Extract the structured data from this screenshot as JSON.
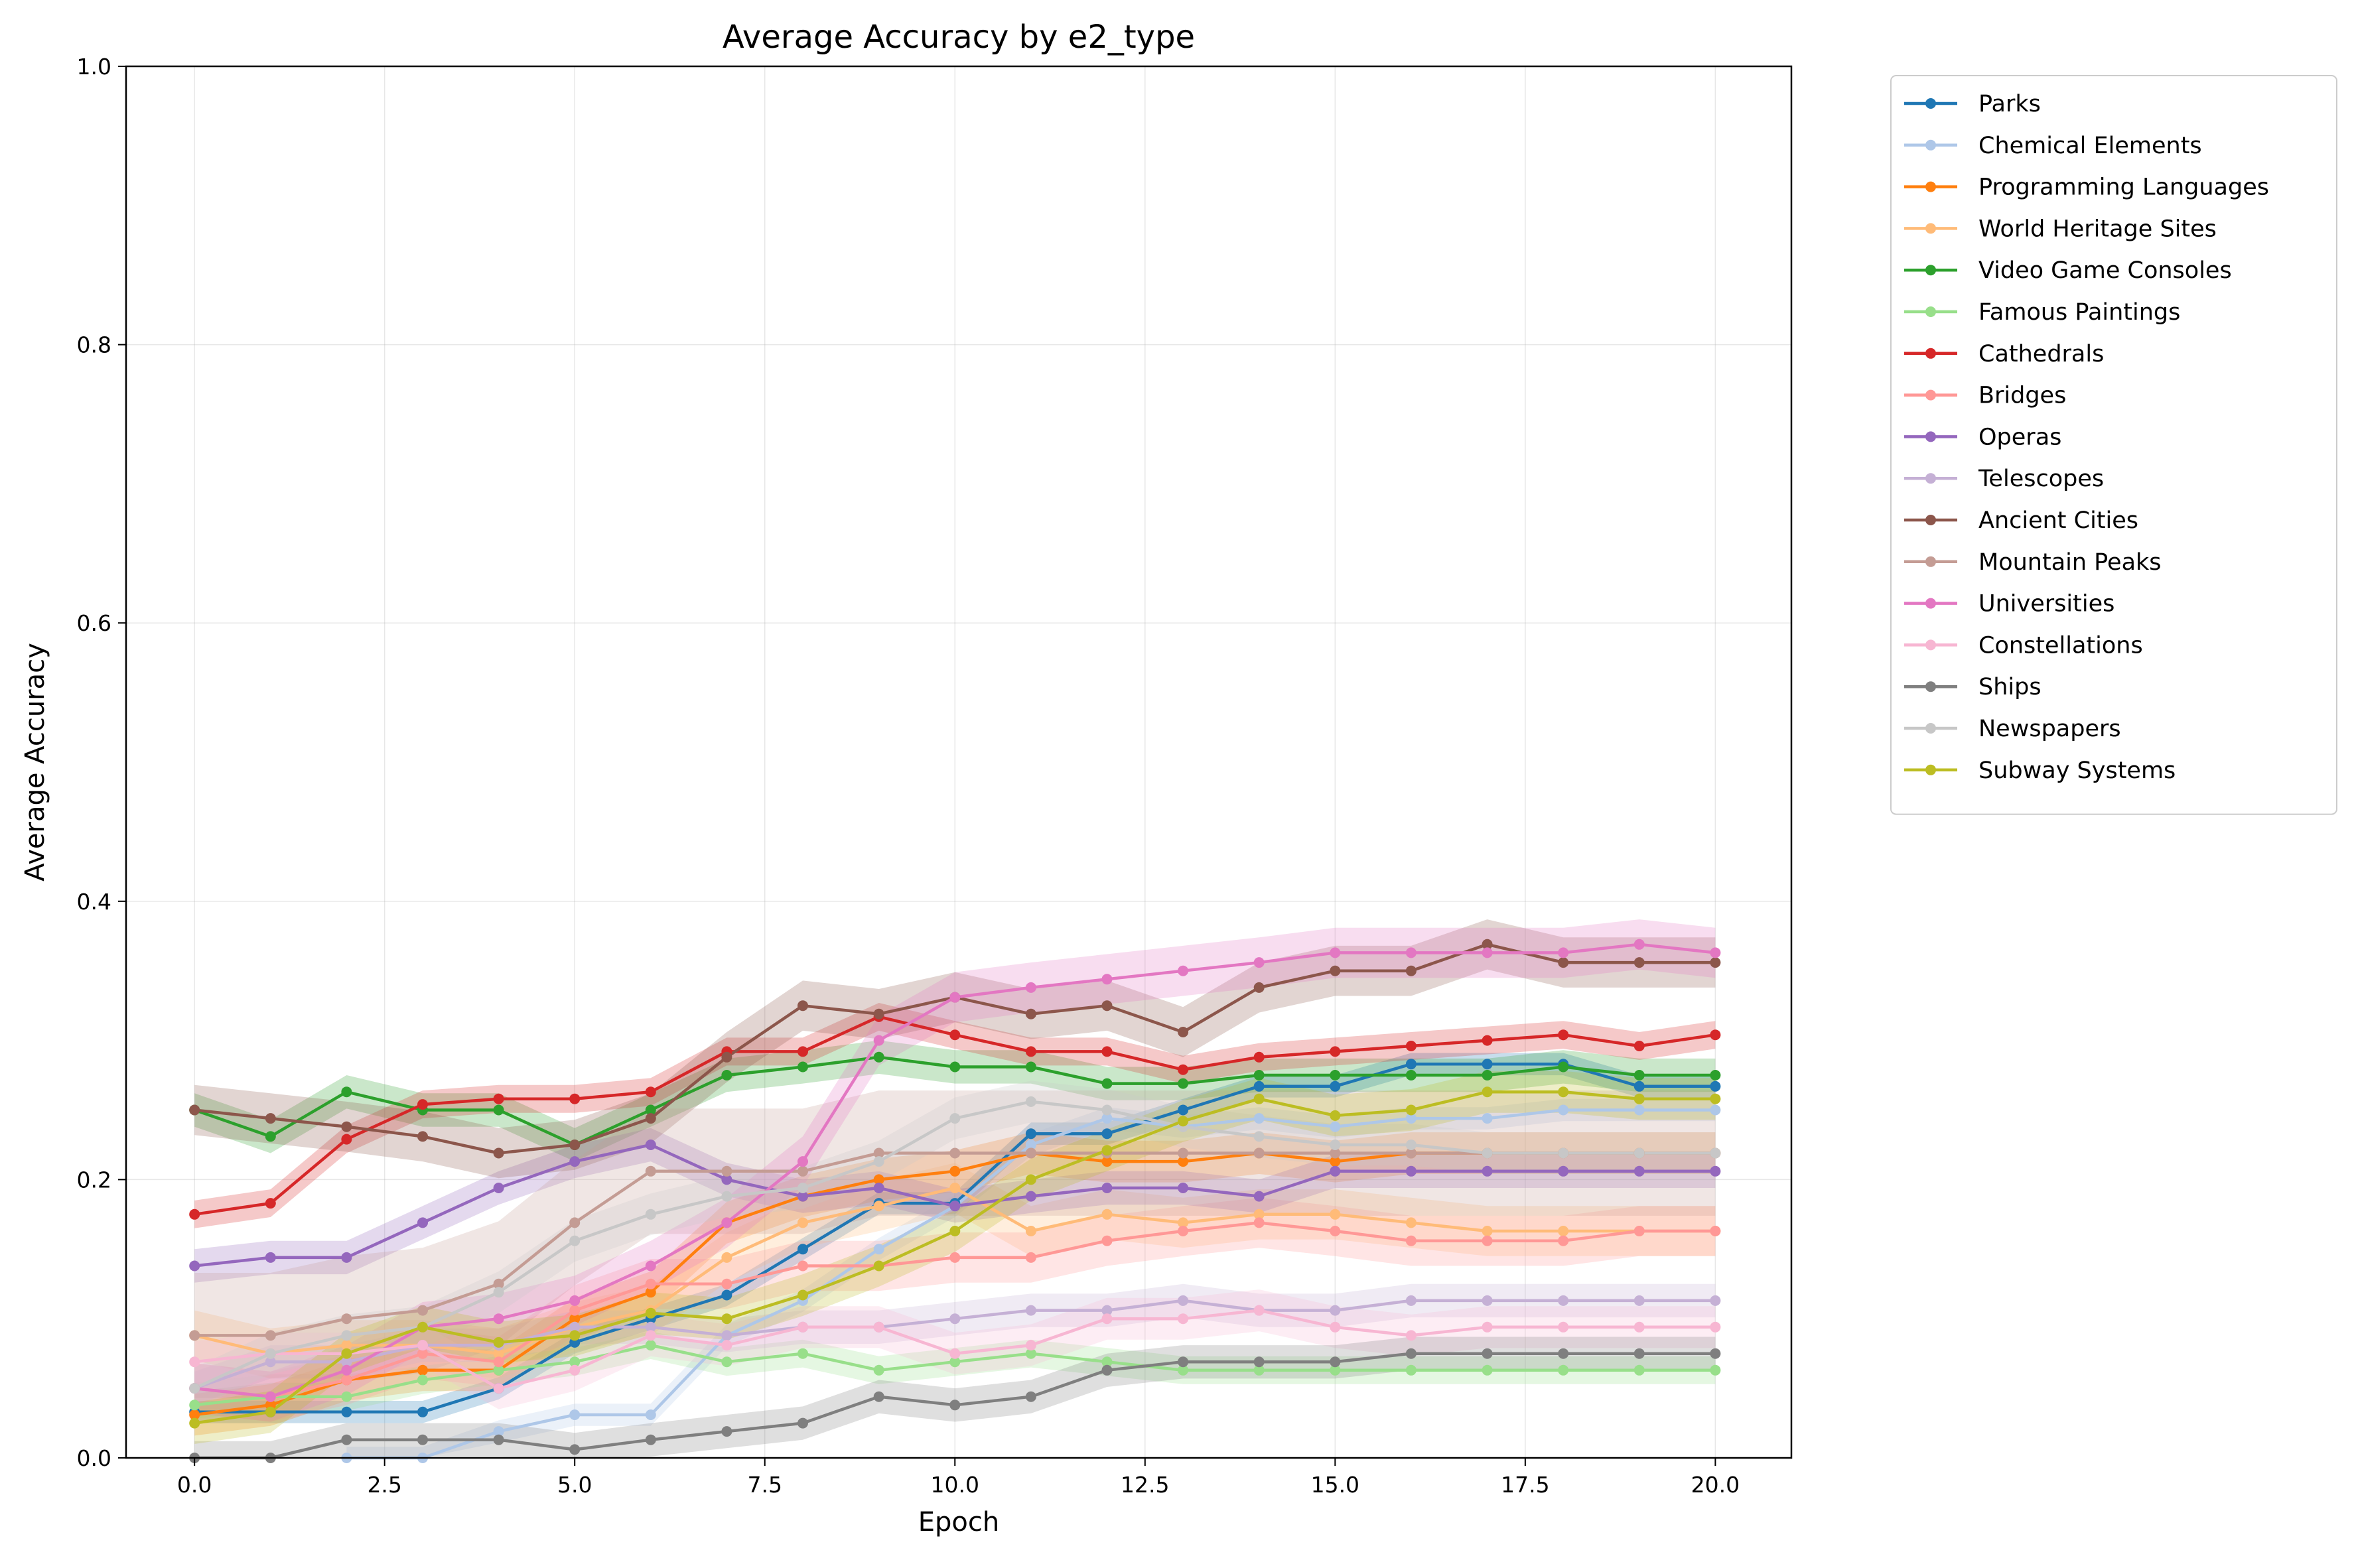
{
  "chart_data": {
    "type": "line",
    "title": "Average Accuracy by e2_type",
    "xlabel": "Epoch",
    "ylabel": "Average Accuracy",
    "xlim": [
      -0.9,
      21.0
    ],
    "ylim": [
      0,
      1.0
    ],
    "xticks": [
      0.0,
      2.5,
      5.0,
      7.5,
      10.0,
      12.5,
      15.0,
      17.5,
      20.0
    ],
    "xtick_labels": [
      "0.0",
      "2.5",
      "5.0",
      "7.5",
      "10.0",
      "12.5",
      "15.0",
      "17.5",
      "20.0"
    ],
    "yticks": [
      0.0,
      0.2,
      0.4,
      0.6,
      0.8,
      1.0
    ],
    "ytick_labels": [
      "0.0",
      "0.2",
      "0.4",
      "0.6",
      "0.8",
      "1.0"
    ],
    "grid": true,
    "legend_position": "outside-upper-right",
    "x": [
      0,
      1,
      2,
      3,
      4,
      5,
      6,
      7,
      8,
      9,
      10,
      11,
      12,
      13,
      14,
      15,
      16,
      17,
      18,
      19,
      20
    ],
    "series": [
      {
        "name": "Parks",
        "color": "#1f77b4",
        "band": 0.008,
        "values": [
          0.033,
          0.033,
          0.033,
          0.033,
          0.05,
          0.083,
          0.1,
          0.117,
          0.15,
          0.183,
          0.183,
          0.233,
          0.233,
          0.25,
          0.267,
          0.267,
          0.283,
          0.283,
          0.283,
          0.267,
          0.267
        ]
      },
      {
        "name": "Chemical Elements",
        "color": "#aec7e8",
        "band": 0.008,
        "values": [
          null,
          null,
          0.0,
          0.0,
          0.019,
          0.031,
          0.031,
          0.088,
          0.113,
          0.15,
          0.181,
          0.225,
          0.244,
          0.238,
          0.244,
          0.238,
          0.244,
          0.244,
          0.25,
          0.25,
          0.25
        ]
      },
      {
        "name": "Programming Languages",
        "color": "#ff7f0e",
        "band": 0.015,
        "values": [
          0.031,
          0.038,
          0.056,
          0.063,
          0.063,
          0.1,
          0.119,
          0.169,
          0.188,
          0.2,
          0.206,
          0.219,
          0.213,
          0.213,
          0.219,
          0.213,
          0.219,
          0.219,
          0.219,
          0.219,
          0.219
        ]
      },
      {
        "name": "World Heritage Sites",
        "color": "#ffbb78",
        "band": 0.018,
        "values": [
          0.088,
          0.075,
          0.081,
          0.081,
          0.075,
          0.094,
          0.106,
          0.144,
          0.169,
          0.181,
          0.194,
          0.163,
          0.175,
          0.169,
          0.175,
          0.175,
          0.169,
          0.163,
          0.163,
          0.163,
          0.163
        ]
      },
      {
        "name": "Video Game Consoles",
        "color": "#2ca02c",
        "band": 0.012,
        "values": [
          0.25,
          0.231,
          0.263,
          0.25,
          0.25,
          0.225,
          0.25,
          0.275,
          0.281,
          0.288,
          0.281,
          0.281,
          0.269,
          0.269,
          0.275,
          0.275,
          0.275,
          0.275,
          0.281,
          0.275,
          0.275
        ]
      },
      {
        "name": "Famous Paintings",
        "color": "#98df8a",
        "band": 0.01,
        "values": [
          0.038,
          0.044,
          0.044,
          0.056,
          0.063,
          0.069,
          0.081,
          0.069,
          0.075,
          0.063,
          0.069,
          0.075,
          0.069,
          0.063,
          0.063,
          0.063,
          0.063,
          0.063,
          0.063,
          0.063,
          0.063
        ]
      },
      {
        "name": "Cathedrals",
        "color": "#d62728",
        "band": 0.01,
        "values": [
          0.175,
          0.183,
          0.229,
          0.254,
          0.258,
          0.258,
          0.263,
          0.292,
          0.292,
          0.317,
          0.304,
          0.292,
          0.292,
          0.279,
          0.288,
          0.292,
          0.296,
          0.3,
          0.304,
          0.296,
          0.304
        ]
      },
      {
        "name": "Bridges",
        "color": "#ff9896",
        "band": 0.018,
        "values": [
          0.05,
          0.044,
          0.056,
          0.075,
          0.069,
          0.106,
          0.125,
          0.125,
          0.138,
          0.138,
          0.144,
          0.144,
          0.156,
          0.163,
          0.169,
          0.163,
          0.156,
          0.156,
          0.156,
          0.163,
          0.163
        ]
      },
      {
        "name": "Operas",
        "color": "#9467bd",
        "band": 0.012,
        "values": [
          0.138,
          0.144,
          0.144,
          0.169,
          0.194,
          0.213,
          0.225,
          0.2,
          0.188,
          0.194,
          0.181,
          0.188,
          0.194,
          0.194,
          0.188,
          0.206,
          0.206,
          0.206,
          0.206,
          0.206,
          0.206
        ]
      },
      {
        "name": "Telescopes",
        "color": "#c5b0d5",
        "band": 0.012,
        "values": [
          0.05,
          0.069,
          0.069,
          0.081,
          0.081,
          0.094,
          0.094,
          0.088,
          0.094,
          0.094,
          0.1,
          0.106,
          0.106,
          0.113,
          0.106,
          0.106,
          0.113,
          0.113,
          0.113,
          0.113,
          0.113
        ]
      },
      {
        "name": "Ancient Cities",
        "color": "#8c564b",
        "band": 0.018,
        "values": [
          0.25,
          0.244,
          0.238,
          0.231,
          0.219,
          0.225,
          0.244,
          0.288,
          0.325,
          0.319,
          0.331,
          0.319,
          0.325,
          0.306,
          0.338,
          0.35,
          0.35,
          0.369,
          0.356,
          0.356,
          0.356
        ]
      },
      {
        "name": "Mountain Peaks",
        "color": "#c49c94",
        "band": 0.045,
        "values": [
          0.088,
          0.088,
          0.1,
          0.106,
          0.125,
          0.169,
          0.206,
          0.206,
          0.206,
          0.219,
          0.219,
          0.219,
          0.219,
          0.219,
          0.219,
          0.219,
          0.219,
          0.219,
          0.219,
          0.219,
          0.219
        ]
      },
      {
        "name": "Universities",
        "color": "#e377c2",
        "band": 0.018,
        "values": [
          0.05,
          0.044,
          0.063,
          0.094,
          0.1,
          0.113,
          0.138,
          0.169,
          0.213,
          0.3,
          0.331,
          0.338,
          0.344,
          0.35,
          0.356,
          0.363,
          0.363,
          0.363,
          0.363,
          0.369,
          0.363
        ]
      },
      {
        "name": "Constellations",
        "color": "#f7b6d2",
        "band": 0.015,
        "values": [
          0.069,
          0.075,
          0.075,
          0.081,
          0.05,
          0.063,
          0.088,
          0.081,
          0.094,
          0.094,
          0.075,
          0.081,
          0.1,
          0.1,
          0.106,
          0.094,
          0.088,
          0.094,
          0.094,
          0.094,
          0.094
        ]
      },
      {
        "name": "Ships",
        "color": "#7f7f7f",
        "band": 0.012,
        "values": [
          0.0,
          0.0,
          0.013,
          0.013,
          0.013,
          0.006,
          0.013,
          0.019,
          0.025,
          0.044,
          0.038,
          0.044,
          0.063,
          0.069,
          0.069,
          0.069,
          0.075,
          0.075,
          0.075,
          0.075,
          0.075
        ]
      },
      {
        "name": "Newspapers",
        "color": "#c7c7c7",
        "band": 0.015,
        "values": [
          0.05,
          0.075,
          0.088,
          0.094,
          0.119,
          0.156,
          0.175,
          0.188,
          0.194,
          0.213,
          0.244,
          0.256,
          0.25,
          0.238,
          0.231,
          0.225,
          0.225,
          0.219,
          0.219,
          0.219,
          0.219
        ]
      },
      {
        "name": "Subway Systems",
        "color": "#bcbd22",
        "band": 0.015,
        "values": [
          0.025,
          0.033,
          0.075,
          0.094,
          0.083,
          0.088,
          0.104,
          0.1,
          0.117,
          0.138,
          0.163,
          0.2,
          0.221,
          0.242,
          0.258,
          0.246,
          0.25,
          0.263,
          0.263,
          0.258,
          0.258
        ]
      }
    ]
  }
}
